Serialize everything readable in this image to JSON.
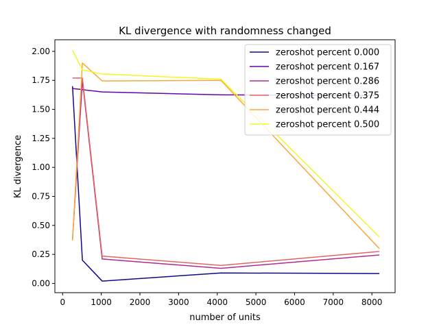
{
  "chart_data": {
    "type": "line",
    "title": "KL divergence with randomness changed",
    "xlabel": "number of units",
    "ylabel": "KL divergence",
    "xlim": [
      -200,
      8600
    ],
    "ylim": [
      -0.08,
      2.1
    ],
    "xticks": [
      0,
      1000,
      2000,
      3000,
      4000,
      5000,
      6000,
      7000,
      8000
    ],
    "xtick_labels": [
      "0",
      "1000",
      "2000",
      "3000",
      "4000",
      "5000",
      "6000",
      "7000",
      "8000"
    ],
    "yticks": [
      0.0,
      0.25,
      0.5,
      0.75,
      1.0,
      1.25,
      1.5,
      1.75,
      2.0
    ],
    "ytick_labels": [
      "0.00",
      "0.25",
      "0.50",
      "0.75",
      "1.00",
      "1.25",
      "1.50",
      "1.75",
      "2.00"
    ],
    "grid": false,
    "legend_position": "top-right",
    "x": [
      256,
      512,
      1024,
      4096,
      8192
    ],
    "series": [
      {
        "name": "zeroshot percent 0.000",
        "color": "#0d0887",
        "values": [
          1.7,
          0.2,
          0.02,
          0.09,
          0.085
        ]
      },
      {
        "name": "zeroshot percent 0.167",
        "color": "#6a00a8",
        "values": [
          1.68,
          1.67,
          1.65,
          1.625,
          1.62
        ]
      },
      {
        "name": "zeroshot percent 0.286",
        "color": "#b12a90",
        "values": [
          0.38,
          1.75,
          0.21,
          0.13,
          0.245
        ]
      },
      {
        "name": "zeroshot percent 0.375",
        "color": "#e16462",
        "values": [
          1.77,
          1.77,
          0.235,
          0.155,
          0.275
        ]
      },
      {
        "name": "zeroshot percent 0.444",
        "color": "#fca636",
        "values": [
          0.37,
          1.9,
          1.745,
          1.75,
          0.3
        ]
      },
      {
        "name": "zeroshot percent 0.500",
        "color": "#f0f921",
        "values": [
          2.01,
          1.84,
          1.805,
          1.76,
          0.4
        ]
      }
    ]
  }
}
